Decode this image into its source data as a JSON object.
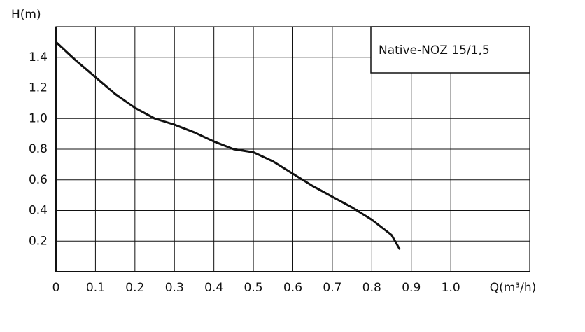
{
  "chart_data": {
    "type": "line",
    "x_label": "Q(m³/h)",
    "y_label": "H(m)",
    "x": [
      0,
      0.05,
      0.1,
      0.15,
      0.2,
      0.25,
      0.3,
      0.35,
      0.4,
      0.45,
      0.5,
      0.55,
      0.6,
      0.65,
      0.7,
      0.75,
      0.8,
      0.85,
      0.87
    ],
    "series": [
      {
        "name": "Native-NOZ 15/1,5",
        "color": "#111111",
        "values": [
          1.5,
          1.38,
          1.27,
          1.16,
          1.07,
          1.0,
          0.96,
          0.91,
          0.85,
          0.8,
          0.78,
          0.72,
          0.64,
          0.56,
          0.49,
          0.42,
          0.34,
          0.24,
          0.15
        ]
      }
    ],
    "xlim": [
      0,
      1.2
    ],
    "ylim": [
      0,
      1.6
    ],
    "xticks": [
      0,
      0.1,
      0.2,
      0.3,
      0.4,
      0.5,
      0.6,
      0.7,
      0.8,
      0.9,
      {
        "value": 1,
        "label": "1.0"
      }
    ],
    "yticks": [
      0.2,
      0.4,
      0.6,
      0.8,
      {
        "value": 1,
        "label": "1.0"
      },
      1.2,
      1.4
    ],
    "grid": true,
    "legend": "upper right"
  }
}
